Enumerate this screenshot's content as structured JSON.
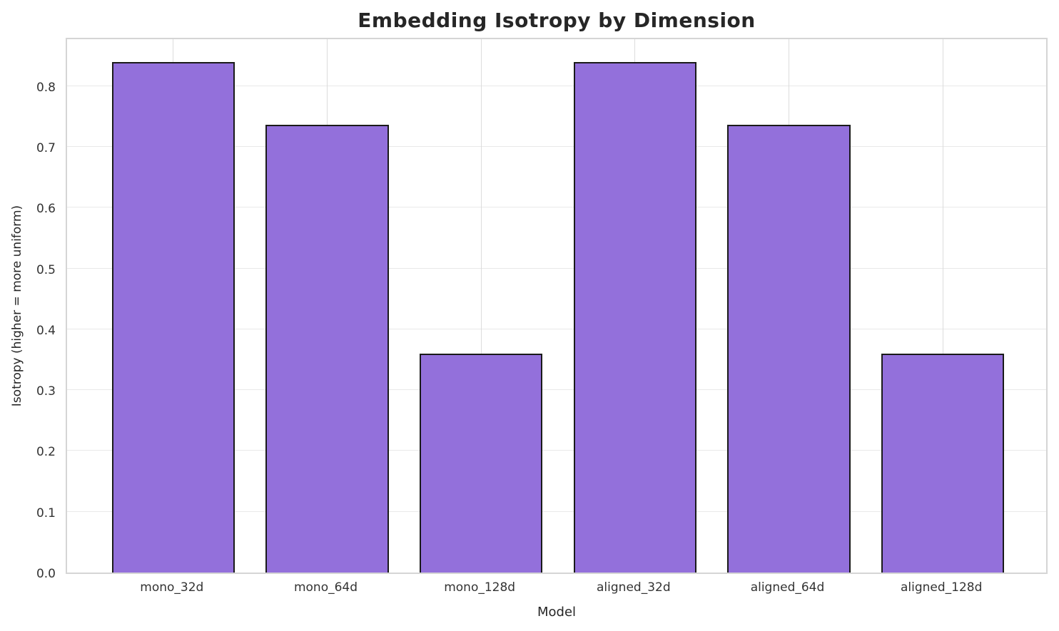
{
  "chart_data": {
    "type": "bar",
    "title": "Embedding Isotropy by Dimension",
    "xlabel": "Model",
    "ylabel": "Isotropy (higher = more uniform)",
    "categories": [
      "mono_32d",
      "mono_64d",
      "mono_128d",
      "aligned_32d",
      "aligned_64d",
      "aligned_128d"
    ],
    "values": [
      0.84,
      0.737,
      0.36,
      0.84,
      0.737,
      0.36
    ],
    "ylim": [
      0,
      0.882
    ],
    "ytick_labels": [
      "0.0",
      "0.1",
      "0.2",
      "0.3",
      "0.4",
      "0.5",
      "0.6",
      "0.7",
      "0.8"
    ],
    "grid": true,
    "legend": "none",
    "bar_fill_color": "#9370DB",
    "bar_edge_color": "#1a1a1a",
    "grid_color": "#e9e9e9",
    "spine_color": "#d5d5d5",
    "title_color": "#262626",
    "tick_label_color": "#333333"
  }
}
